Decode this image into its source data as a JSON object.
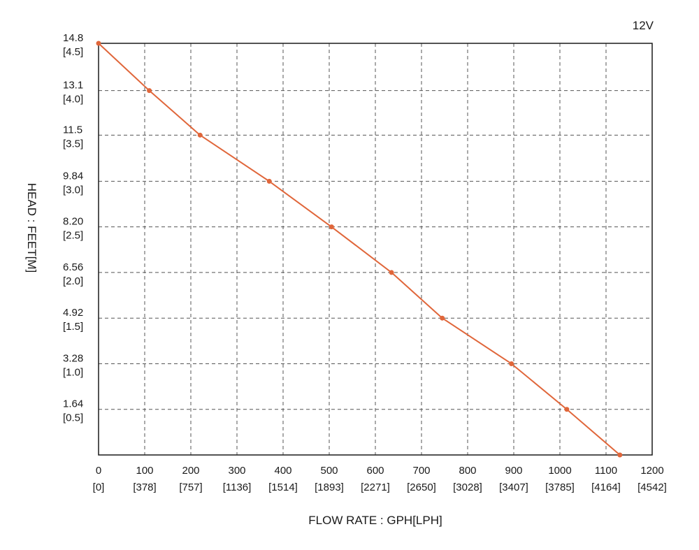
{
  "chart_data": {
    "type": "line",
    "corner_label": "12V",
    "xlabel": "FLOW RATE : GPH[LPH]",
    "ylabel": "HEAD : FEET[M]",
    "x_ticks": [
      {
        "value": 0,
        "label": "0",
        "sublabel": "[0]"
      },
      {
        "value": 100,
        "label": "100",
        "sublabel": "[378]"
      },
      {
        "value": 200,
        "label": "200",
        "sublabel": "[757]"
      },
      {
        "value": 300,
        "label": "300",
        "sublabel": "[1136]"
      },
      {
        "value": 400,
        "label": "400",
        "sublabel": "[1514]"
      },
      {
        "value": 500,
        "label": "500",
        "sublabel": "[1893]"
      },
      {
        "value": 600,
        "label": "600",
        "sublabel": "[2271]"
      },
      {
        "value": 700,
        "label": "700",
        "sublabel": "[2650]"
      },
      {
        "value": 800,
        "label": "800",
        "sublabel": "[3028]"
      },
      {
        "value": 900,
        "label": "900",
        "sublabel": "[3407]"
      },
      {
        "value": 1000,
        "label": "1000",
        "sublabel": "[3785]"
      },
      {
        "value": 1100,
        "label": "1100",
        "sublabel": "[4164]"
      },
      {
        "value": 1200,
        "label": "1200",
        "sublabel": "[4542]"
      }
    ],
    "y_ticks": [
      {
        "value": 1.64,
        "label": "1.64",
        "sublabel": "[0.5]"
      },
      {
        "value": 3.28,
        "label": "3.28",
        "sublabel": "[1.0]"
      },
      {
        "value": 4.92,
        "label": "4.92",
        "sublabel": "[1.5]"
      },
      {
        "value": 6.56,
        "label": "6.56",
        "sublabel": "[2.0]"
      },
      {
        "value": 8.2,
        "label": "8.20",
        "sublabel": "[2.5]"
      },
      {
        "value": 9.84,
        "label": "9.84",
        "sublabel": "[3.0]"
      },
      {
        "value": 11.5,
        "label": "11.5",
        "sublabel": "[3.5]"
      },
      {
        "value": 13.1,
        "label": "13.1",
        "sublabel": "[4.0]"
      },
      {
        "value": 14.8,
        "label": "14.8",
        "sublabel": "[4.5]"
      }
    ],
    "xlim": [
      0,
      1200
    ],
    "ylim": [
      0,
      14.8
    ],
    "grid": true,
    "series": [
      {
        "color": "#e0663a",
        "x": [
          0,
          110,
          220,
          370,
          505,
          635,
          745,
          895,
          1015,
          1130
        ],
        "y": [
          14.8,
          13.1,
          11.5,
          9.84,
          8.2,
          6.56,
          4.92,
          3.28,
          1.64,
          0
        ]
      }
    ]
  }
}
